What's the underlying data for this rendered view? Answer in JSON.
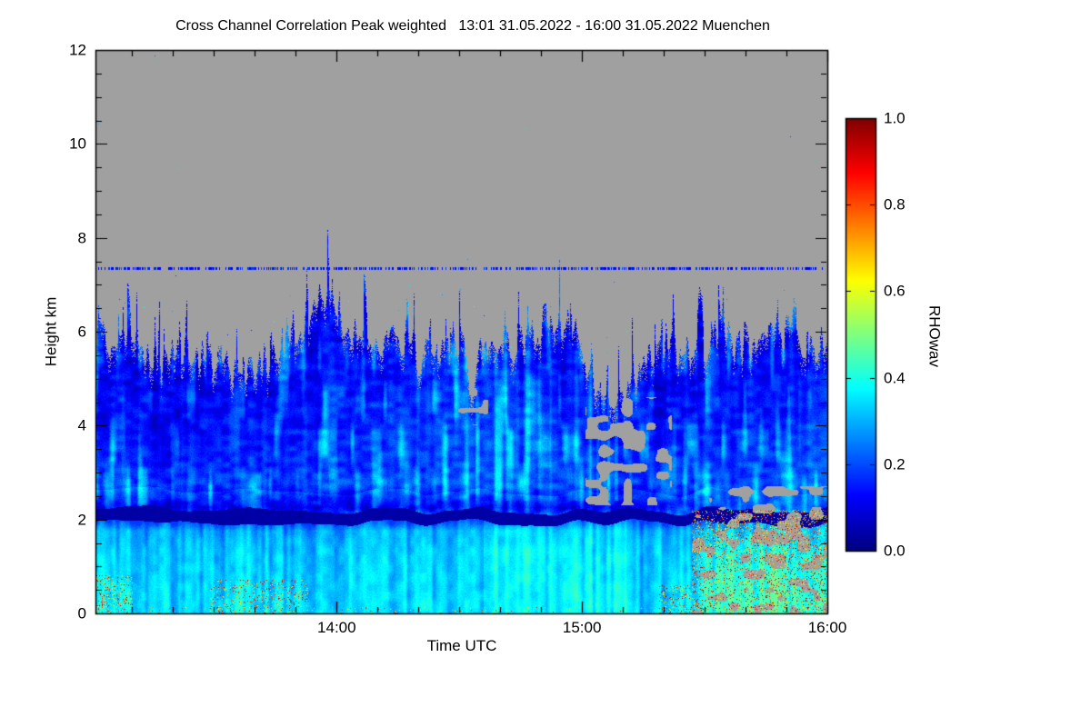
{
  "chart_data": {
    "type": "heatmap",
    "title": "Cross Channel Correlation Peak weighted   13:01 31.05.2022 - 16:00 31.05.2022 Muenchen",
    "measurement": "Cross Channel Correlation Peak weighted",
    "period": "13:01 31.05.2022 - 16:00 31.05.2022",
    "station": "Muenchen",
    "xlabel": "Time UTC",
    "ylabel": "Height km",
    "x_start": "13:01",
    "x_end": "16:00",
    "x_duration_min": 179,
    "y_range_km": [
      0,
      12
    ],
    "x_ticks": [
      {
        "label": "14:00",
        "minute": 59
      },
      {
        "label": "15:00",
        "minute": 119
      },
      {
        "label": "16:00",
        "minute": 179
      }
    ],
    "x_minor_tick_every_min": 10,
    "y_ticks": [
      0,
      2,
      4,
      6,
      8,
      10,
      12
    ],
    "y_minor_tick_every_km": 0.5,
    "colorbar": {
      "label": "RHOwav",
      "range": [
        0,
        1
      ],
      "ticks": [
        0,
        0.2,
        0.4,
        0.6,
        0.8,
        1
      ],
      "colormap": "jet"
    },
    "no_data_color": "#a0a0a0",
    "cloud_top_profile": {
      "t_min": [
        0,
        8,
        15,
        22,
        30,
        38,
        45,
        50,
        54,
        58,
        62,
        68,
        75,
        82,
        88,
        90,
        92,
        94,
        98,
        103,
        108,
        113,
        118,
        122,
        127,
        132,
        138,
        143,
        148,
        153,
        158,
        163,
        168,
        173,
        179
      ],
      "top_km": [
        5.9,
        5.5,
        5.3,
        5.6,
        5.3,
        5.1,
        5.7,
        6.1,
        6.8,
        6.5,
        6.2,
        5.9,
        5.6,
        5.4,
        5.8,
        5.7,
        4.7,
        5.7,
        5.9,
        5.6,
        6.1,
        6.3,
        5.9,
        5.0,
        4.3,
        5.0,
        5.6,
        5.4,
        5.7,
        5.9,
        5.6,
        5.8,
        6.0,
        5.6,
        5.9
      ]
    },
    "melting_layer": {
      "height_km": 2.05,
      "thickness_km": 0.26,
      "value": 0.02
    },
    "artifact_line": {
      "height_km": 7.35,
      "density": 0.5,
      "value_range": [
        0.08,
        0.2
      ]
    },
    "gaps": [
      {
        "t": [
          120,
          141
        ],
        "h": [
          2.3,
          4.6
        ],
        "density": 0.5
      },
      {
        "t": [
          146,
          179
        ],
        "h": [
          0.0,
          2.7
        ],
        "density": 0.42
      },
      {
        "t": [
          88,
          96
        ],
        "h": [
          4.0,
          4.8
        ],
        "density": 0.2
      }
    ],
    "speckles": [
      {
        "t": [
          0,
          9
        ],
        "h": [
          0,
          0.8
        ],
        "density": 0.5,
        "value_range": [
          0.45,
          1.0
        ]
      },
      {
        "t": [
          28,
          52
        ],
        "h": [
          0,
          0.7
        ],
        "density": 0.4,
        "value_range": [
          0.45,
          1.0
        ]
      },
      {
        "t": [
          146,
          179
        ],
        "h": [
          0,
          2.2
        ],
        "density": 0.55,
        "value_range": [
          0.42,
          1.0
        ]
      },
      {
        "t": [
          138,
          179
        ],
        "h": [
          0,
          0.6
        ],
        "density": 0.45,
        "value_range": [
          0.42,
          1.0
        ]
      },
      {
        "t": [
          0,
          179
        ],
        "h": [
          0,
          0.12
        ],
        "density": 0.1,
        "value_range": [
          0.45,
          0.9
        ]
      }
    ],
    "values_coarse": {
      "t_centers_min": [
        5,
        15,
        25,
        35,
        45,
        55,
        65,
        75,
        85,
        95,
        105,
        115,
        125,
        135,
        145,
        155,
        165,
        175
      ],
      "h_centers_km": [
        0.25,
        0.75,
        1.25,
        1.75,
        2.25,
        2.75,
        3.25,
        3.75,
        4.25,
        4.75,
        5.25,
        5.75,
        6.25
      ],
      "values": [
        [
          0.36,
          0.34,
          0.33,
          0.37,
          0.35,
          0.33,
          0.33,
          0.34,
          0.33,
          0.34,
          0.33,
          0.34,
          0.33,
          0.33,
          0.38,
          0.43,
          0.45,
          0.4
        ],
        [
          0.34,
          0.33,
          0.32,
          0.34,
          0.33,
          0.32,
          0.33,
          0.33,
          0.32,
          0.33,
          0.33,
          0.33,
          0.32,
          0.32,
          0.36,
          0.4,
          0.42,
          0.38
        ],
        [
          0.33,
          0.32,
          0.32,
          0.33,
          0.32,
          0.32,
          0.32,
          0.33,
          0.32,
          0.33,
          0.34,
          0.33,
          0.32,
          0.32,
          0.35,
          0.38,
          0.4,
          0.36
        ],
        [
          0.3,
          0.29,
          0.28,
          0.29,
          0.28,
          0.28,
          0.29,
          0.3,
          0.29,
          0.3,
          0.31,
          0.3,
          0.29,
          0.29,
          0.3,
          0.33,
          0.35,
          0.32
        ],
        [
          0.06,
          0.05,
          0.05,
          0.05,
          0.06,
          0.05,
          0.05,
          0.06,
          0.05,
          0.05,
          0.06,
          0.06,
          0.05,
          0.06,
          0.1,
          0.14,
          0.17,
          0.14
        ],
        [
          0.2,
          0.18,
          0.17,
          0.18,
          0.19,
          0.2,
          0.19,
          0.2,
          0.21,
          0.22,
          0.21,
          0.2,
          0.19,
          0.18,
          0.17,
          0.18,
          0.2,
          0.22
        ],
        [
          0.17,
          0.15,
          0.14,
          0.15,
          0.17,
          0.18,
          0.17,
          0.18,
          0.2,
          0.21,
          0.2,
          0.19,
          0.17,
          0.15,
          0.15,
          0.16,
          0.18,
          0.2
        ],
        [
          0.15,
          0.13,
          0.12,
          0.13,
          0.15,
          0.17,
          0.16,
          0.17,
          0.19,
          0.2,
          0.19,
          0.18,
          0.15,
          0.13,
          0.14,
          0.15,
          0.17,
          0.18
        ],
        [
          0.14,
          0.12,
          0.11,
          0.12,
          0.14,
          0.16,
          0.15,
          0.16,
          0.18,
          0.19,
          0.18,
          0.16,
          0.13,
          null,
          0.13,
          0.14,
          0.16,
          0.17
        ],
        [
          0.13,
          0.11,
          0.1,
          0.11,
          0.13,
          0.15,
          0.14,
          0.15,
          0.17,
          0.18,
          0.16,
          0.14,
          0.11,
          null,
          0.12,
          0.13,
          0.15,
          0.16
        ],
        [
          0.12,
          0.1,
          null,
          0.1,
          0.12,
          0.14,
          0.13,
          0.14,
          0.16,
          0.16,
          0.14,
          0.12,
          null,
          null,
          0.11,
          0.12,
          0.14,
          0.14
        ],
        [
          0.11,
          null,
          null,
          null,
          0.11,
          0.13,
          0.12,
          0.12,
          0.14,
          0.14,
          0.12,
          null,
          null,
          null,
          null,
          0.11,
          0.12,
          0.12
        ],
        [
          null,
          null,
          null,
          null,
          null,
          0.12,
          0.11,
          null,
          0.12,
          0.12,
          null,
          null,
          null,
          null,
          null,
          null,
          null,
          null
        ]
      ]
    }
  }
}
